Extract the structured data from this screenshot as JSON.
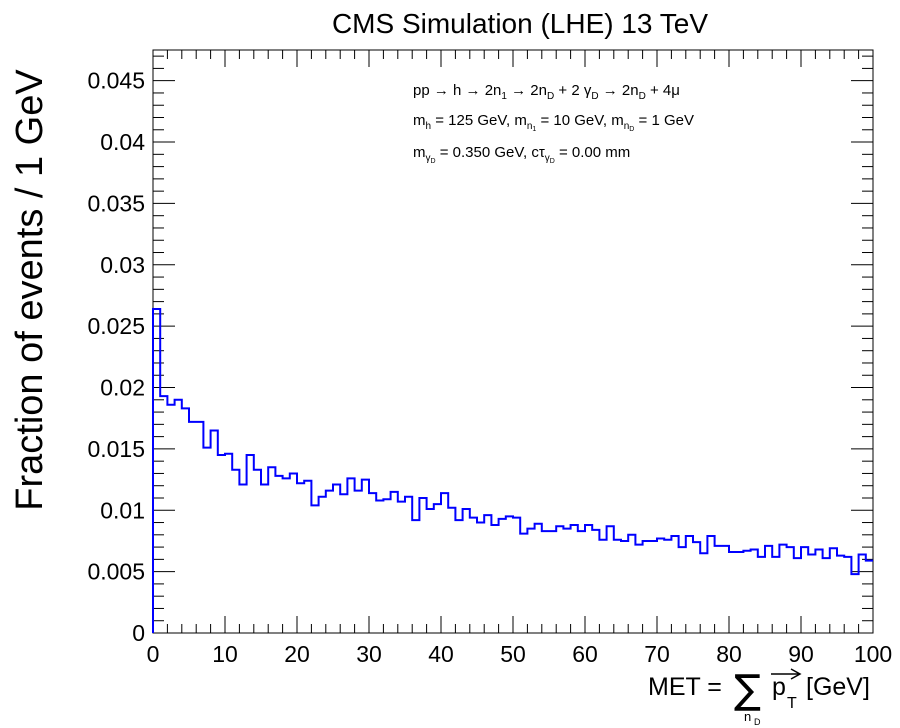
{
  "chart_data": {
    "type": "histogram",
    "title": "CMS Simulation (LHE) 13 TeV",
    "ylabel": "Fraction of events / 1 GeV",
    "xlabel": {
      "prefix": "MET = ",
      "sum_symbol": "∑",
      "sum_sub": "n",
      "sum_subsub": "D",
      "vector": "p",
      "vector_sub": "T",
      "unit": "[GeV]"
    },
    "xlim": [
      0,
      100
    ],
    "ylim": [
      0,
      0.0475
    ],
    "x_ticks": [
      0,
      10,
      20,
      30,
      40,
      50,
      60,
      70,
      80,
      90,
      100
    ],
    "x_tick_labels": [
      "0",
      "10",
      "20",
      "30",
      "40",
      "50",
      "60",
      "70",
      "80",
      "90",
      "100"
    ],
    "y_ticks": [
      0,
      0.005,
      0.01,
      0.015,
      0.02,
      0.025,
      0.03,
      0.035,
      0.04,
      0.045
    ],
    "y_tick_labels": [
      "0",
      "0.005",
      "0.01",
      "0.015",
      "0.02",
      "0.025",
      "0.03",
      "0.035",
      "0.04",
      "0.045"
    ],
    "line_color": "#0000ff",
    "bin_width": 1,
    "annotations": [
      {
        "text": "pp → h → 2n₁ → 2n_D + 2 γ_D → 2n_D + 4μ"
      },
      {
        "text": "m_h = 125 GeV, m_n₁ = 10 GeV, m_nD = 1 GeV"
      },
      {
        "text": "m_γD = 0.350 GeV, cτ_γD = 0.00 mm"
      }
    ],
    "series": [
      {
        "name": "MET",
        "values": [
          0.0264,
          0.0193,
          0.0186,
          0.019,
          0.0183,
          0.0172,
          0.0172,
          0.0151,
          0.0165,
          0.0145,
          0.0146,
          0.0133,
          0.0121,
          0.0145,
          0.0133,
          0.0121,
          0.0135,
          0.0128,
          0.0126,
          0.013,
          0.0122,
          0.0124,
          0.0104,
          0.0111,
          0.0116,
          0.0121,
          0.0113,
          0.0126,
          0.0116,
          0.0125,
          0.0114,
          0.0108,
          0.0109,
          0.0115,
          0.0107,
          0.0111,
          0.0092,
          0.011,
          0.0101,
          0.0105,
          0.0114,
          0.0102,
          0.0092,
          0.0101,
          0.0094,
          0.009,
          0.0096,
          0.0088,
          0.0093,
          0.0095,
          0.0094,
          0.0081,
          0.0085,
          0.0089,
          0.0083,
          0.0083,
          0.0087,
          0.0085,
          0.0088,
          0.0083,
          0.0088,
          0.0084,
          0.0076,
          0.0087,
          0.0076,
          0.0075,
          0.008,
          0.0072,
          0.0075,
          0.0075,
          0.0077,
          0.0076,
          0.0079,
          0.007,
          0.0079,
          0.0074,
          0.0065,
          0.0079,
          0.0071,
          0.0071,
          0.0066,
          0.0066,
          0.0067,
          0.0068,
          0.0062,
          0.0071,
          0.0062,
          0.0072,
          0.007,
          0.0061,
          0.007,
          0.0064,
          0.0068,
          0.0061,
          0.0069,
          0.0063,
          0.0062,
          0.0048,
          0.0064,
          0.0059
        ]
      }
    ]
  }
}
